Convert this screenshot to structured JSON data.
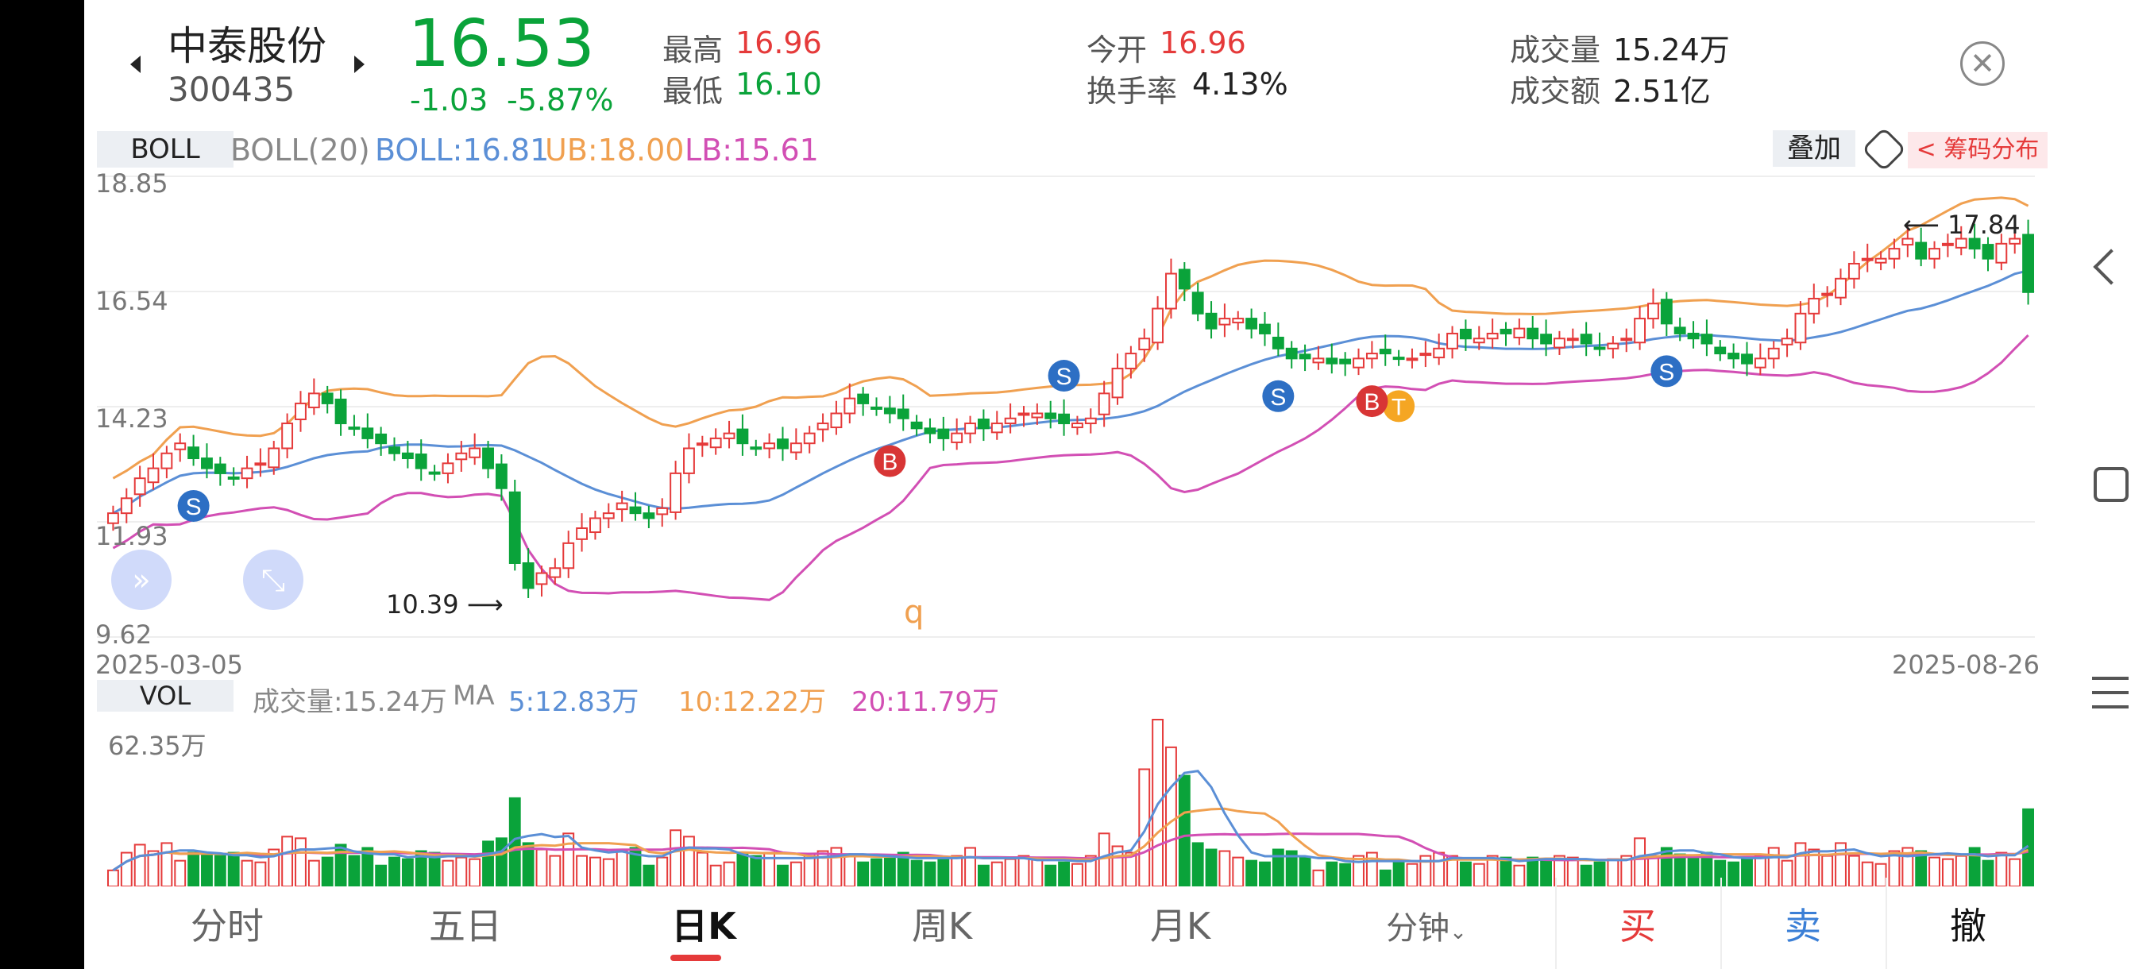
{
  "stock": {
    "name": "中泰股份",
    "code": "300435",
    "price": "16.53",
    "change": "-1.03",
    "change_pct": "-5.87%",
    "high_label": "最高",
    "high": "16.96",
    "low_label": "最低",
    "low": "16.10",
    "open_label": "今开",
    "open": "16.96",
    "turnover_label": "换手率",
    "turnover": "4.13%",
    "volume_label": "成交量",
    "volume": "15.24万",
    "amount_label": "成交额",
    "amount": "2.51亿"
  },
  "boll": {
    "tab": "BOLL",
    "param": "BOLL(20)",
    "mid": "BOLL:16.81",
    "ub": "UB:18.00",
    "lb": "LB:15.61",
    "overlay": "叠加",
    "chip": "< 筹码分布"
  },
  "price_axis": {
    "ticks": [
      "18.85",
      "16.54",
      "14.23",
      "11.93",
      "9.62"
    ],
    "start_date": "2025-03-05",
    "end_date": "2025-08-26",
    "low_marker": "10.39",
    "high_marker": "17.84",
    "stray_char": "q"
  },
  "vol": {
    "tab": "VOL",
    "volume": "成交量:15.24万",
    "ma_label": "MA",
    "ma5": "5:12.83万",
    "ma10": "10:12.22万",
    "ma20": "20:11.79万",
    "max_tick": "62.35万"
  },
  "signals": {
    "s": "S",
    "b": "B",
    "t": "T"
  },
  "tabs": [
    "分时",
    "五日",
    "日K",
    "周K",
    "月K",
    "分钟"
  ],
  "actions": {
    "buy": "买",
    "sell": "卖",
    "cancel": "撤"
  },
  "colors": {
    "up": "#e53a3a",
    "down": "#0aa33a",
    "mid_line": "#5b8fd6",
    "upper_line": "#f0a050",
    "lower_line": "#d24fb4"
  },
  "chart_data": {
    "type": "candlestick",
    "x_range": [
      "2025-03-05",
      "2025-08-26"
    ],
    "ylim": [
      9.62,
      18.85
    ],
    "series": [
      {
        "name": "BOLL",
        "last": 16.81
      },
      {
        "name": "UB",
        "last": 18.0
      },
      {
        "name": "LB",
        "last": 15.61
      }
    ],
    "close_approx": [
      12.1,
      12.4,
      12.8,
      13.0,
      13.3,
      13.5,
      13.2,
      13.0,
      12.9,
      12.8,
      13.0,
      13.1,
      13.4,
      13.9,
      14.3,
      14.5,
      14.3,
      13.9,
      13.8,
      13.6,
      13.5,
      13.3,
      13.2,
      13.0,
      12.9,
      13.1,
      13.3,
      13.4,
      13.0,
      12.6,
      11.1,
      10.6,
      10.9,
      11.0,
      11.5,
      11.8,
      12.0,
      12.1,
      12.3,
      12.1,
      12.0,
      12.2,
      12.9,
      13.4,
      13.5,
      13.6,
      13.7,
      13.5,
      13.4,
      13.5,
      13.4,
      13.5,
      13.7,
      13.9,
      14.1,
      14.4,
      14.3,
      14.2,
      14.1,
      14.0,
      13.8,
      13.7,
      13.6,
      13.7,
      13.9,
      13.8,
      13.9,
      14.0,
      14.1,
      14.1,
      14.0,
      13.9,
      13.9,
      14.0,
      14.5,
      15.0,
      15.3,
      15.6,
      16.2,
      16.9,
      16.6,
      16.1,
      15.8,
      16.0,
      16.0,
      15.8,
      15.7,
      15.4,
      15.2,
      15.2,
      15.2,
      15.1,
      15.1,
      15.2,
      15.3,
      15.3,
      15.2,
      15.2,
      15.3,
      15.4,
      15.7,
      15.6,
      15.6,
      15.7,
      15.7,
      15.8,
      15.6,
      15.5,
      15.6,
      15.6,
      15.5,
      15.4,
      15.5,
      15.6,
      16.0,
      16.3,
      15.9,
      15.7,
      15.6,
      15.5,
      15.3,
      15.2,
      15.1,
      15.2,
      15.4,
      15.6,
      16.1,
      16.4,
      16.5,
      16.8,
      17.1,
      17.2,
      17.2,
      17.4,
      17.6,
      17.2,
      17.4,
      17.5,
      17.6,
      17.4,
      17.2,
      17.5,
      17.6,
      16.53
    ],
    "volume_max": 62.35,
    "volume_unit": "万",
    "ma": {
      "ma5": 12.83,
      "ma10": 12.22,
      "ma20": 11.79
    }
  }
}
